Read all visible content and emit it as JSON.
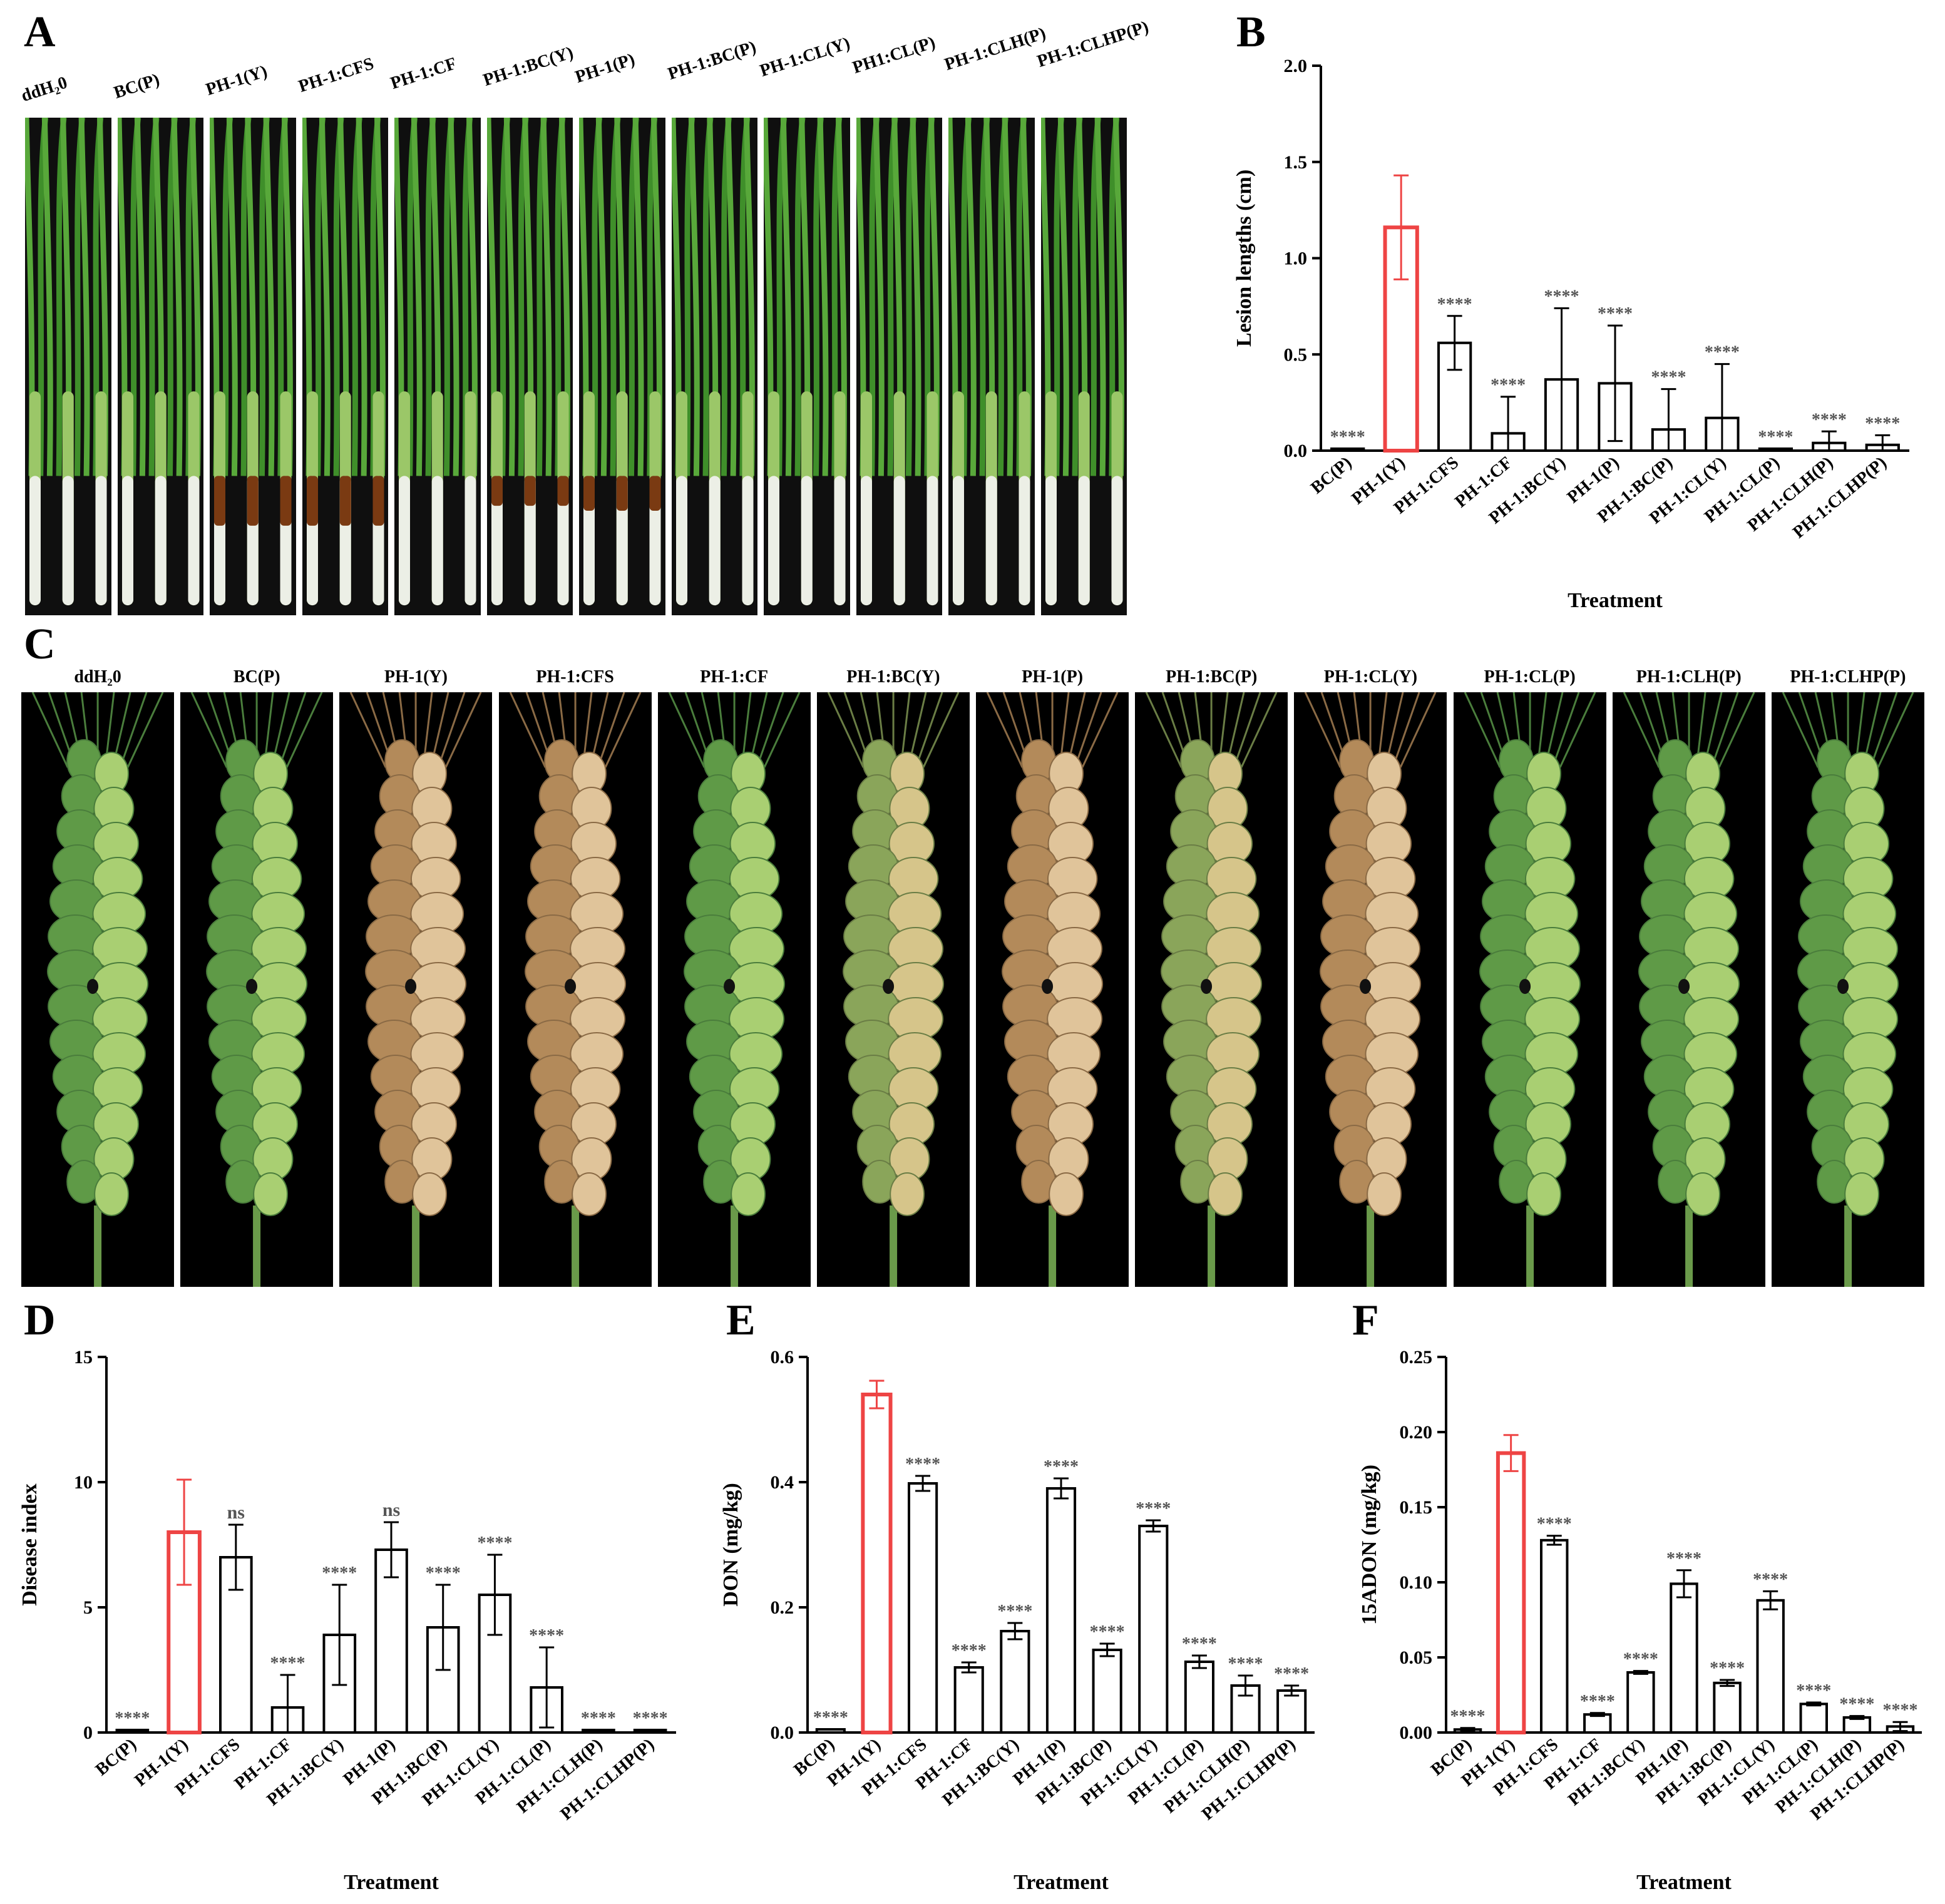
{
  "panels": {
    "A": "A",
    "B": "B",
    "C": "C",
    "D": "D",
    "E": "E",
    "F": "F"
  },
  "seedling_labels": [
    "ddH₂0",
    "BC(P)",
    "PH-1(Y)",
    "PH-1:CFS",
    "PH-1:CF",
    "PH-1:BC(Y)",
    "PH-1(P)",
    "PH-1:BC(P)",
    "PH-1:CL(Y)",
    "PH1:CL(P)",
    "PH-1:CLH(P)",
    "PH-1:CLHP(P)"
  ],
  "spike_labels": [
    "ddH₂0",
    "BC(P)",
    "PH-1(Y)",
    "PH-1:CFS",
    "PH-1:CF",
    "PH-1:BC(Y)",
    "PH-1(P)",
    "PH-1:BC(P)",
    "PH-1:CL(Y)",
    "PH-1:CL(P)",
    "PH-1:CLH(P)",
    "PH-1:CLHP(P)"
  ],
  "spike_palette": [
    "green",
    "green",
    "blighted",
    "blighted",
    "green",
    "mixed",
    "blighted",
    "mixed",
    "blighted",
    "green",
    "green",
    "green"
  ],
  "colors": {
    "control_bar": "#ee4444",
    "treatment_bar": "#000000",
    "significance": "#555555"
  },
  "chart_data": [
    {
      "panel": "B",
      "type": "bar",
      "ylabel": "Lesion lengths (cm)",
      "xlabel": "Treatment",
      "ylim": [
        0,
        2.0
      ],
      "yticks": [
        "0.0",
        "0.5",
        "1.0",
        "1.5",
        "2.0"
      ],
      "categories": [
        "BC(P)",
        "PH-1(Y)",
        "PH-1:CFS",
        "PH-1:CF",
        "PH-1:BC(Y)",
        "PH-1(P)",
        "PH-1:BC(P)",
        "PH-1:CL(Y)",
        "PH-1:CL(P)",
        "PH-1:CLH(P)",
        "PH-1:CLHP(P)"
      ],
      "values": [
        0.01,
        1.16,
        0.56,
        0.09,
        0.37,
        0.35,
        0.11,
        0.17,
        0.01,
        0.04,
        0.03
      ],
      "errors": [
        0.0,
        0.27,
        0.14,
        0.19,
        0.37,
        0.3,
        0.21,
        0.28,
        0.0,
        0.06,
        0.05
      ],
      "significance": [
        "****",
        "",
        "****",
        "****",
        "****",
        "****",
        "****",
        "****",
        "****",
        "****",
        "****"
      ],
      "highlight_index": 1
    },
    {
      "panel": "D",
      "type": "bar",
      "ylabel": "Disease index",
      "xlabel": "Treatment",
      "ylim": [
        0,
        15
      ],
      "yticks": [
        "0",
        "5",
        "10",
        "15"
      ],
      "categories": [
        "BC(P)",
        "PH-1(Y)",
        "PH-1:CFS",
        "PH-1:CF",
        "PH-1:BC(Y)",
        "PH-1(P)",
        "PH-1:BC(P)",
        "PH-1:CL(Y)",
        "PH-1:CL(P)",
        "PH-1:CLH(P)",
        "PH-1:CLHP(P)"
      ],
      "values": [
        0.1,
        8.0,
        7.0,
        1.0,
        3.9,
        7.3,
        4.2,
        5.5,
        1.8,
        0.1,
        0.1
      ],
      "errors": [
        0.0,
        2.1,
        1.3,
        1.3,
        2.0,
        1.1,
        1.7,
        1.6,
        1.6,
        0.0,
        0.0
      ],
      "significance": [
        "****",
        "",
        "ns",
        "****",
        "****",
        "ns",
        "****",
        "****",
        "****",
        "****",
        "****"
      ],
      "highlight_index": 1
    },
    {
      "panel": "E",
      "type": "bar",
      "ylabel": "DON (mg/kg)",
      "xlabel": "Treatment",
      "ylim": [
        0,
        0.6
      ],
      "yticks": [
        "0.0",
        "0.2",
        "0.4",
        "0.6"
      ],
      "categories": [
        "BC(P)",
        "PH-1(Y)",
        "PH-1:CFS",
        "PH-1:CF",
        "PH-1:BC(Y)",
        "PH-1(P)",
        "PH-1:BC(P)",
        "PH-1:CL(Y)",
        "PH-1:CL(P)",
        "PH-1:CLH(P)",
        "PH-1:CLHP(P)"
      ],
      "values": [
        0.005,
        0.54,
        0.398,
        0.104,
        0.162,
        0.39,
        0.132,
        0.33,
        0.113,
        0.075,
        0.067
      ],
      "errors": [
        0.0,
        0.022,
        0.012,
        0.008,
        0.013,
        0.016,
        0.01,
        0.009,
        0.01,
        0.016,
        0.008
      ],
      "significance": [
        "****",
        "",
        "****",
        "****",
        "****",
        "****",
        "****",
        "****",
        "****",
        "****",
        "****"
      ],
      "highlight_index": 1
    },
    {
      "panel": "F",
      "type": "bar",
      "ylabel": "15ADON (mg/kg)",
      "xlabel": "Treatment",
      "ylim": [
        0,
        0.25
      ],
      "yticks": [
        "0.00",
        "0.05",
        "0.10",
        "0.15",
        "0.20",
        "0.25"
      ],
      "categories": [
        "BC(P)",
        "PH-1(Y)",
        "PH-1:CFS",
        "PH-1:CF",
        "PH-1:BC(Y)",
        "PH-1(P)",
        "PH-1:BC(P)",
        "PH-1:CL(Y)",
        "PH-1:CL(P)",
        "PH-1:CLH(P)",
        "PH-1:CLHP(P)"
      ],
      "values": [
        0.002,
        0.186,
        0.128,
        0.012,
        0.04,
        0.099,
        0.033,
        0.088,
        0.019,
        0.01,
        0.004
      ],
      "errors": [
        0.001,
        0.012,
        0.003,
        0.001,
        0.001,
        0.009,
        0.002,
        0.006,
        0.001,
        0.001,
        0.003
      ],
      "significance": [
        "****",
        "",
        "****",
        "****",
        "****",
        "****",
        "****",
        "****",
        "****",
        "****",
        "****"
      ],
      "highlight_index": 1
    }
  ]
}
